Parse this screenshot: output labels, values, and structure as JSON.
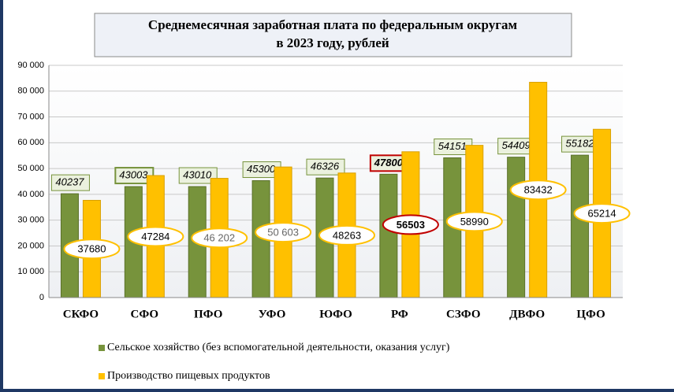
{
  "chart_data": {
    "type": "bar",
    "title": "Среднемесячная заработная плата по федеральным округам",
    "subtitle": "в 2023 году, рублей",
    "categories": [
      "СКФО",
      "СФО",
      "ПФО",
      "УФО",
      "ЮФО",
      "РФ",
      "СЗФО",
      "ДВФО",
      "ЦФО"
    ],
    "series": [
      {
        "name": "Сельское хозяйство (без вспомогательной деятельности, оказания услуг)",
        "color": "#77933c",
        "values": [
          40237,
          43003,
          43010,
          45300,
          46326,
          47800,
          54151,
          54409,
          55182
        ]
      },
      {
        "name": "Производство пищевых продуктов",
        "color": "#ffc000",
        "values": [
          37680,
          47284,
          46202,
          50603,
          48263,
          56503,
          58990,
          83432,
          65214
        ],
        "value_labels": [
          "37680",
          "47284",
          "46 202",
          "50 603",
          "48263",
          "56503",
          "58990",
          "83432",
          "65214"
        ]
      }
    ],
    "ylim": [
      0,
      90000
    ],
    "yticks": [
      0,
      {
        "value": 10000,
        "label": "10 000"
      },
      {
        "value": 20000,
        "label": "20 000"
      },
      {
        "value": 30000,
        "label": "30 000"
      },
      {
        "value": 40000,
        "label": "40 000"
      },
      {
        "value": 50000,
        "label": "50 000"
      },
      {
        "value": 60000,
        "label": "60 000"
      },
      {
        "value": 70000,
        "label": "70 000"
      },
      {
        "value": 80000,
        "label": "80 000"
      },
      {
        "value": 90000,
        "label": "90 000"
      }
    ],
    "grid": true,
    "legend": "bottom"
  }
}
